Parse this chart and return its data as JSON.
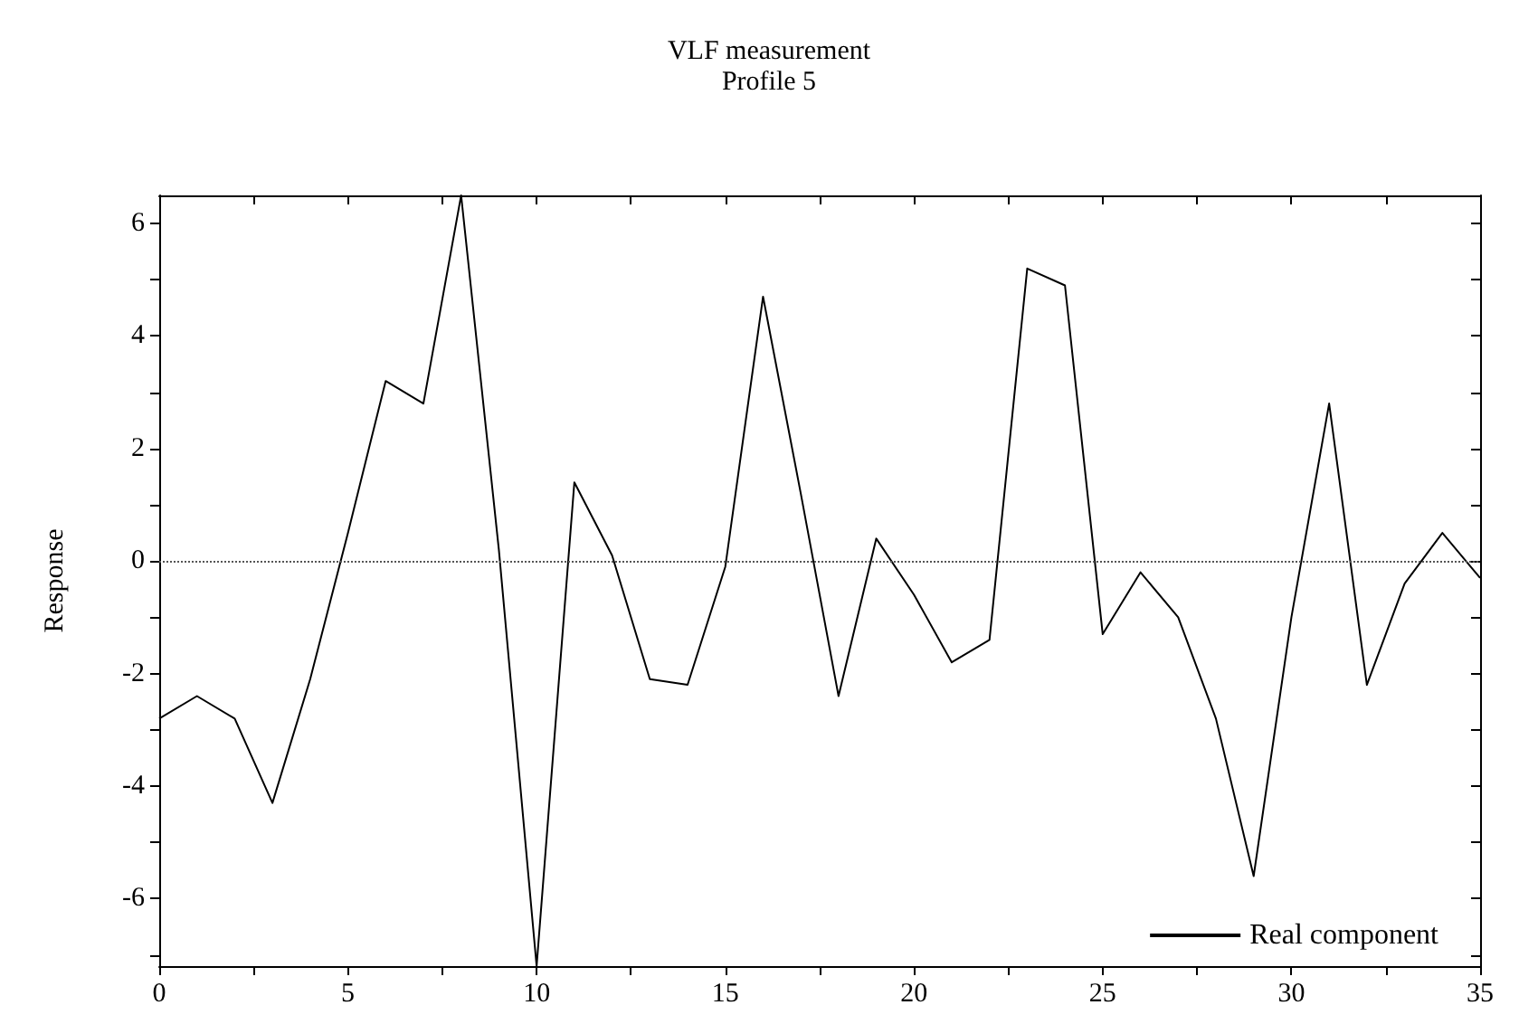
{
  "chart_data": {
    "type": "line",
    "title": "VLF measurement",
    "subtitle": "Profile 5",
    "ylabel": "Response",
    "x": [
      0,
      1,
      2,
      3,
      4,
      5,
      6,
      7,
      8,
      9,
      10,
      11,
      12,
      13,
      14,
      15,
      16,
      17,
      18,
      19,
      20,
      21,
      22,
      23,
      24,
      25,
      26,
      27,
      28,
      29,
      30,
      31,
      32,
      33,
      34,
      35
    ],
    "series": [
      {
        "name": "Real component",
        "color": "#000000",
        "values": [
          -2.8,
          -2.4,
          -2.8,
          -4.3,
          -2.1,
          0.5,
          3.2,
          2.8,
          6.5,
          0.2,
          -7.2,
          1.4,
          0.1,
          -2.1,
          -2.2,
          -0.1,
          4.7,
          1.2,
          -2.4,
          0.4,
          -0.6,
          -1.8,
          -1.4,
          5.2,
          4.9,
          -1.3,
          -0.2,
          -1.0,
          -2.8,
          -5.6,
          -1.0,
          2.8,
          -2.2,
          -0.4,
          0.5,
          -0.3
        ]
      }
    ],
    "xlim": [
      0,
      35
    ],
    "xticks": [
      0,
      {
        "value": 2.5,
        "label": null
      },
      5,
      {
        "value": 7.5,
        "label": null
      },
      10,
      {
        "value": 12.5,
        "label": null
      },
      15,
      {
        "value": 17.5,
        "label": null
      },
      20,
      {
        "value": 22.5,
        "label": null
      },
      25,
      {
        "value": 27.5,
        "label": null
      },
      30,
      {
        "value": 32.5,
        "label": null
      },
      35
    ],
    "ylim": [
      -7.2,
      6.5
    ],
    "yticks": [
      {
        "value": -7,
        "label": null
      },
      -6,
      {
        "value": -5,
        "label": null
      },
      -4,
      {
        "value": -3,
        "label": null
      },
      -2,
      {
        "value": -1,
        "label": null
      },
      0,
      {
        "value": 1,
        "label": null
      },
      2,
      {
        "value": 3,
        "label": null
      },
      4,
      {
        "value": 5,
        "label": null
      },
      6
    ],
    "ref_lines": [
      {
        "axis": "y",
        "value": 0,
        "line_style": "dotted",
        "color": "#555555"
      }
    ],
    "legend": "bottom right",
    "grid": false,
    "marker": "none",
    "line_style": "solid"
  }
}
